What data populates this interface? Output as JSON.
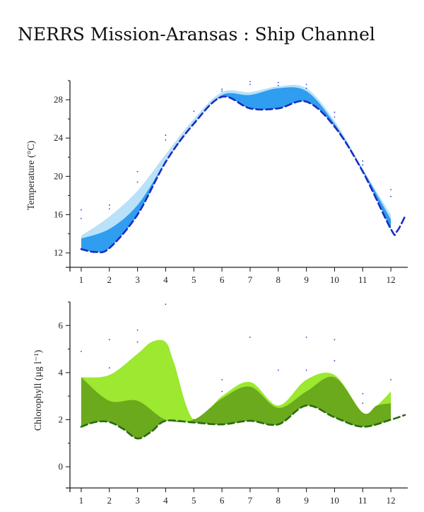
{
  "page": {
    "title": "NERRS Mission-Aransas : Ship Channel"
  },
  "chart_data": [
    {
      "type": "area",
      "xlabel": "",
      "ylabel": "Temperature (°C)",
      "xlim": [
        0.6,
        12.6
      ],
      "ylim": [
        10.5,
        30
      ],
      "x_ticks": [
        1,
        2,
        3,
        4,
        5,
        6,
        7,
        8,
        9,
        10,
        11,
        12
      ],
      "y_ticks": [
        12,
        16,
        20,
        24,
        28
      ],
      "colors": {
        "upper_band": "#b9e1f8",
        "lower_band": "#2f9df0",
        "dashed": "#1a2cc0",
        "dots": "#2a3cd8"
      },
      "series": [
        {
          "role": "upper",
          "x": [
            1,
            2,
            3,
            4,
            5,
            6,
            7,
            8,
            9,
            10,
            11,
            12
          ],
          "values": [
            13.8,
            15.8,
            18.5,
            22.3,
            26.0,
            28.8,
            28.8,
            29.4,
            29.2,
            25.8,
            20.8,
            16.0
          ]
        },
        {
          "role": "middle",
          "x": [
            1,
            2,
            3,
            4,
            5,
            6,
            7,
            8,
            9,
            10,
            11,
            12
          ],
          "values": [
            13.5,
            14.5,
            17.0,
            21.5,
            25.5,
            28.5,
            28.5,
            29.2,
            28.9,
            25.5,
            20.7,
            15.5
          ]
        },
        {
          "role": "dashed",
          "x": [
            1,
            1.5,
            2,
            3,
            4,
            5,
            6,
            7,
            8,
            9,
            10,
            11,
            12,
            12.2,
            12.5
          ],
          "values": [
            12.4,
            12.1,
            12.5,
            16.0,
            21.5,
            25.5,
            28.3,
            27.1,
            27.1,
            27.8,
            25.2,
            20.5,
            14.5,
            14.2,
            15.8
          ]
        }
      ],
      "points": [
        [
          1,
          16.5
        ],
        [
          1,
          15.6
        ],
        [
          2,
          17.0
        ],
        [
          2,
          16.6
        ],
        [
          3,
          20.5
        ],
        [
          3,
          19.4
        ],
        [
          4,
          24.3
        ],
        [
          4,
          23.8
        ],
        [
          5,
          26.8
        ],
        [
          6,
          29.1
        ],
        [
          6,
          28.9
        ],
        [
          7,
          29.9
        ],
        [
          7,
          29.6
        ],
        [
          8,
          29.8
        ],
        [
          8,
          29.5
        ],
        [
          9,
          29.6
        ],
        [
          9,
          29.2
        ],
        [
          10,
          26.7
        ],
        [
          10,
          26.2
        ],
        [
          11,
          21.6
        ],
        [
          11,
          21.2
        ],
        [
          12,
          18.6
        ],
        [
          12,
          17.9
        ]
      ]
    },
    {
      "type": "area",
      "xlabel": "",
      "ylabel": "Chlorophyll (µg l⁻¹)",
      "xlim": [
        0.6,
        12.6
      ],
      "ylim": [
        -0.9,
        7.0
      ],
      "x_ticks": [
        1,
        2,
        3,
        4,
        5,
        6,
        7,
        8,
        9,
        10,
        11,
        12
      ],
      "y_ticks": [
        0,
        2,
        4,
        6
      ],
      "colors": {
        "upper_band": "#9de830",
        "lower_band": "#6aaa1c",
        "dashed": "#2a6a14",
        "dots": "#2a3cd8"
      },
      "series": [
        {
          "role": "upper",
          "x": [
            1,
            2,
            3,
            3.5,
            4,
            4.3,
            5,
            6,
            7,
            8,
            9,
            10,
            11,
            11.5,
            12
          ],
          "values": [
            3.8,
            3.9,
            4.8,
            5.3,
            5.3,
            4.4,
            2.0,
            3.0,
            3.6,
            2.6,
            3.7,
            3.9,
            2.3,
            2.6,
            3.2
          ]
        },
        {
          "role": "middle",
          "x": [
            1,
            2,
            3,
            4,
            5,
            6,
            7,
            8,
            9,
            10,
            11,
            11.5,
            12
          ],
          "values": [
            3.8,
            2.8,
            2.8,
            2.0,
            2.0,
            2.9,
            3.4,
            2.5,
            3.2,
            3.8,
            2.3,
            2.6,
            2.7
          ]
        },
        {
          "role": "dashed",
          "x": [
            1,
            1.5,
            2,
            2.5,
            3,
            3.5,
            4,
            5,
            6,
            7,
            8,
            9,
            10,
            11,
            12,
            12.5
          ],
          "values": [
            1.7,
            1.9,
            1.9,
            1.6,
            1.2,
            1.5,
            1.95,
            1.88,
            1.8,
            1.95,
            1.8,
            2.6,
            2.1,
            1.7,
            2.0,
            2.2
          ]
        }
      ],
      "points": [
        [
          1,
          4.9
        ],
        [
          2,
          5.4
        ],
        [
          2,
          4.2
        ],
        [
          3,
          5.8
        ],
        [
          3,
          5.3
        ],
        [
          4,
          6.9
        ],
        [
          5,
          2.0
        ],
        [
          6,
          3.7
        ],
        [
          6,
          3.2
        ],
        [
          7,
          5.5
        ],
        [
          8,
          4.1
        ],
        [
          9,
          5.5
        ],
        [
          9,
          4.1
        ],
        [
          10,
          5.4
        ],
        [
          10,
          4.5
        ],
        [
          11,
          3.1
        ],
        [
          11,
          2.7
        ],
        [
          12,
          3.7
        ]
      ]
    }
  ]
}
